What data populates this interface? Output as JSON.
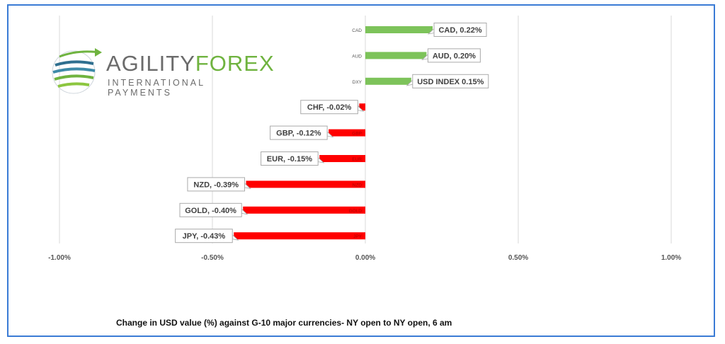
{
  "logo": {
    "word_part1": "AGILITY",
    "word_part2": "FOREX",
    "subtitle": "INTERNATIONAL PAYMENTS",
    "gray": "#6b6b6b",
    "green": "#6fb33f"
  },
  "caption": "Change in  USD value (%)  against  G-10 major currencies- NY open to NY open, 6 am",
  "chart_data": {
    "type": "bar",
    "orientation": "horizontal",
    "categories": [
      "CAD",
      "AUD",
      "DXY",
      "CHF",
      "GBP",
      "EUR",
      "NZD",
      "GOLD",
      "JPY"
    ],
    "values": [
      0.22,
      0.2,
      0.15,
      -0.02,
      -0.12,
      -0.15,
      -0.39,
      -0.4,
      -0.43
    ],
    "data_labels": [
      "CAD, 0.22%",
      "AUD, 0.20%",
      "USD INDEX 0.15%",
      "CHF, -0.02%",
      "GBP, -0.12%",
      "EUR, -0.15%",
      "NZD, -0.39%",
      "GOLD, -0.40%",
      "JPY, -0.43%"
    ],
    "xlim": [
      -1.0,
      1.0
    ],
    "xticks": [
      -1.0,
      -0.5,
      0.0,
      0.5,
      1.0
    ],
    "xtick_labels": [
      "-1.00%",
      "-0.50%",
      "0.00%",
      "0.50%",
      "1.00%"
    ],
    "grid": true,
    "colors": {
      "positive": "#7dc35a",
      "negative": "#ff0000",
      "grid": "#d9d9d9"
    }
  }
}
